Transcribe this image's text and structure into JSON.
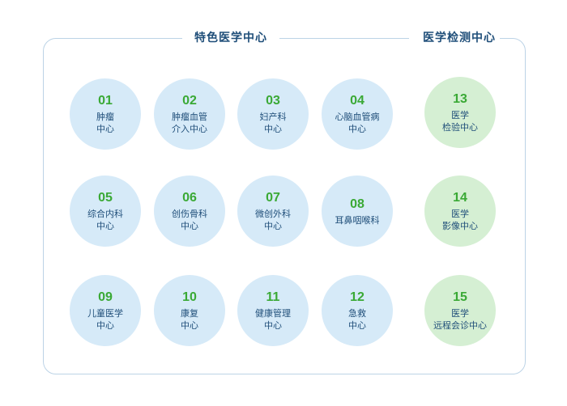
{
  "sections": {
    "featured_title": "特色医学中心",
    "diagnostics_title": "医学检测中心"
  },
  "featured_centers": [
    {
      "num": "01",
      "lines": [
        "肿瘤",
        "中心"
      ]
    },
    {
      "num": "02",
      "lines": [
        "肿瘤血管",
        "介入中心"
      ]
    },
    {
      "num": "03",
      "lines": [
        "妇产科",
        "中心"
      ]
    },
    {
      "num": "04",
      "lines": [
        "心脑血管病",
        "中心"
      ]
    },
    {
      "num": "05",
      "lines": [
        "综合内科",
        "中心"
      ]
    },
    {
      "num": "06",
      "lines": [
        "创伤骨科",
        "中心"
      ]
    },
    {
      "num": "07",
      "lines": [
        "微创外科",
        "中心"
      ]
    },
    {
      "num": "08",
      "lines": [
        "耳鼻咽喉科"
      ]
    },
    {
      "num": "09",
      "lines": [
        "儿童医学",
        "中心"
      ]
    },
    {
      "num": "10",
      "lines": [
        "康复",
        "中心"
      ]
    },
    {
      "num": "11",
      "lines": [
        "健康管理",
        "中心"
      ]
    },
    {
      "num": "12",
      "lines": [
        "急救",
        "中心"
      ]
    }
  ],
  "diagnostic_centers": [
    {
      "num": "13",
      "lines": [
        "医学",
        "检验中心"
      ]
    },
    {
      "num": "14",
      "lines": [
        "医学",
        "影像中心"
      ]
    },
    {
      "num": "15",
      "lines": [
        "医学",
        "远程会诊中心"
      ]
    }
  ],
  "colors": {
    "featured_circle": "#d6eaf8",
    "diagnostic_circle": "#d5efd3",
    "number": "#3aa935",
    "label": "#1f4e79",
    "border": "#bcd3e6"
  }
}
